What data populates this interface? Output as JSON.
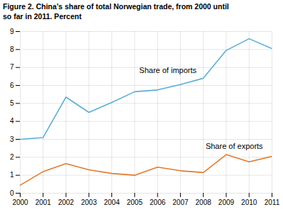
{
  "chart_data": {
    "type": "line",
    "title": "Figure 2. China’s share of total Norwegian trade, from 2000 until\nso far in 2011. Percent",
    "x": [
      2000,
      2001,
      2002,
      2003,
      2004,
      2005,
      2006,
      2007,
      2008,
      2009,
      2010,
      2011
    ],
    "series": [
      {
        "color": "#5BADD4",
        "values": [
          3.0,
          3.1,
          5.35,
          4.5,
          5.05,
          5.65,
          5.75,
          6.05,
          6.4,
          7.95,
          8.6,
          8.05
        ]
      },
      {
        "color": "#E07B30",
        "values": [
          0.45,
          1.2,
          1.65,
          1.3,
          1.1,
          1.0,
          1.45,
          1.25,
          1.15,
          2.15,
          1.75,
          2.05
        ]
      }
    ],
    "annotations": [
      {
        "text": "Share of imports",
        "x": 2005.2,
        "y": 6.7
      },
      {
        "text": "Share of exports",
        "x": 2008.1,
        "y": 2.45
      }
    ],
    "xlim": [
      2000,
      2011
    ],
    "xticks": [
      2000,
      2001,
      2002,
      2003,
      2004,
      2005,
      2006,
      2007,
      2008,
      2009,
      2010,
      2011
    ],
    "ylim": [
      0,
      9
    ],
    "yticks": [
      0,
      1,
      2,
      3,
      4,
      5,
      6,
      7,
      8,
      9
    ],
    "grid": true
  }
}
